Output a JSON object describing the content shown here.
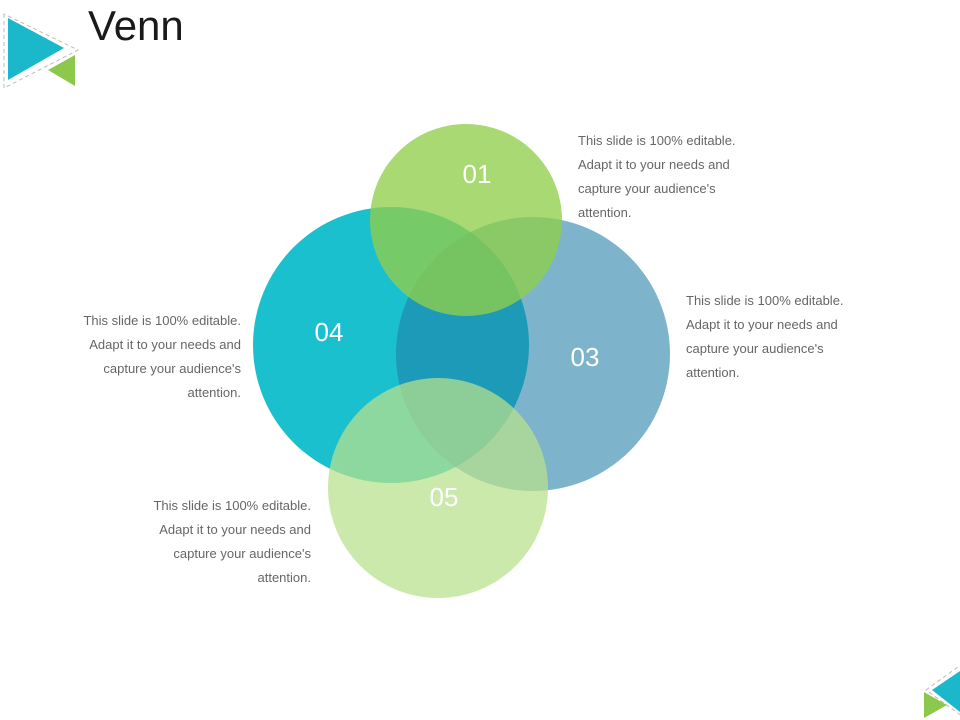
{
  "title": "Venn",
  "colors": {
    "c01": "#a5d86a",
    "c04": "#1bc0cf",
    "c03": "#7ca6bf",
    "c05": "#c8e8a4",
    "logo_teal": "#1bb8cc",
    "logo_green": "#8cc84b"
  },
  "circles": [
    {
      "label": "01"
    },
    {
      "label": "04"
    },
    {
      "label": "03"
    },
    {
      "label": "05"
    }
  ],
  "texts": {
    "t01": [
      "This slide is 100% editable.",
      "Adapt it to your needs and",
      "capture your audience's",
      "attention."
    ],
    "t03": [
      "This slide is 100% editable.",
      "Adapt it to your needs and",
      "capture your audience's",
      "attention."
    ],
    "t04": [
      "This slide is 100% editable.",
      "Adapt it to your needs and",
      "capture your audience's",
      "attention."
    ],
    "t05": [
      "This slide is 100% editable.",
      "Adapt it to your needs and",
      "capture your audience's",
      "attention."
    ]
  }
}
